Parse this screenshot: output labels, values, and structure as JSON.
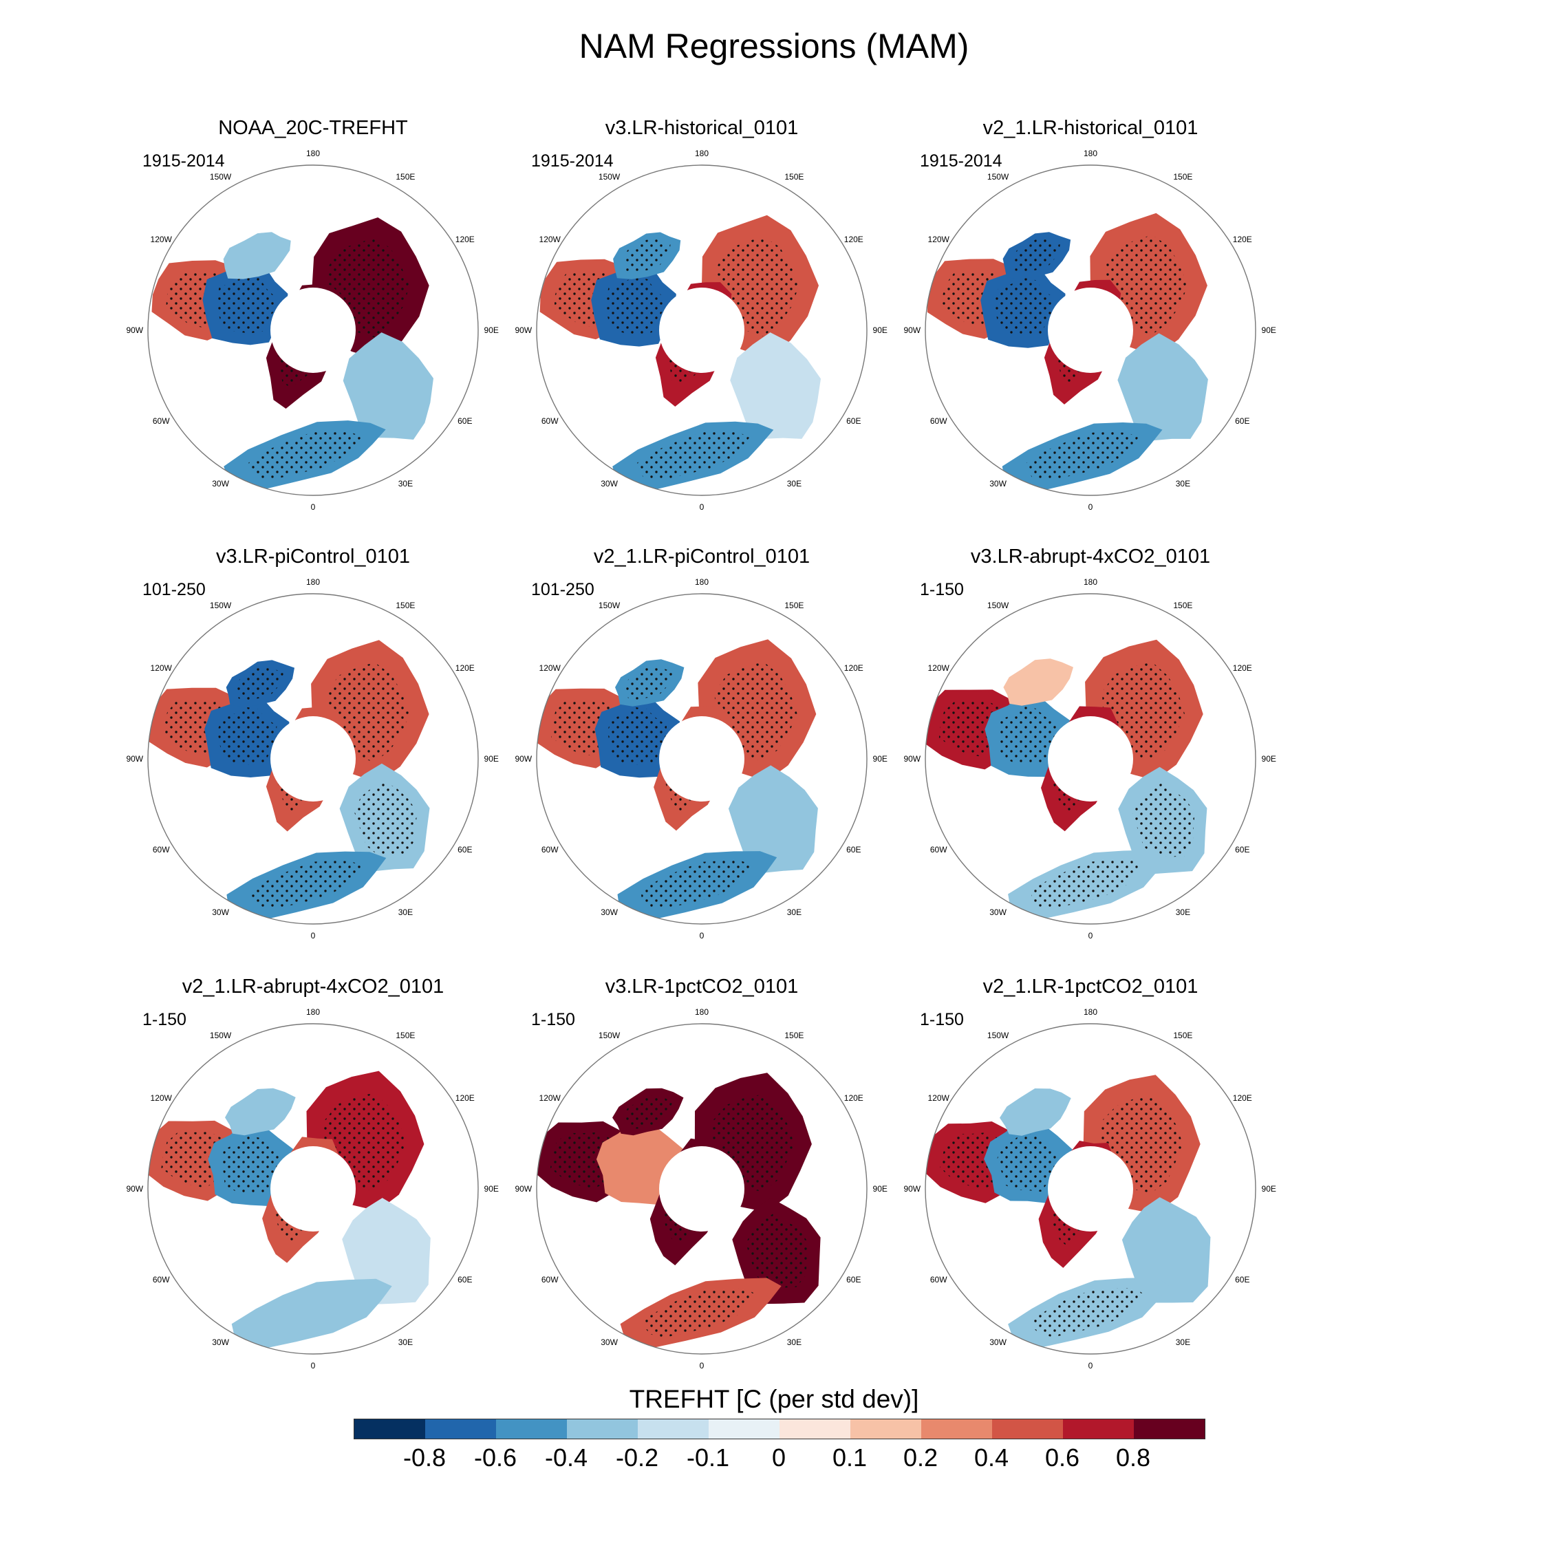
{
  "title": "NAM Regressions (MAM)",
  "lon_labels": [
    "180",
    "150E",
    "120E",
    "90E",
    "60E",
    "30E",
    "0",
    "30W",
    "60W",
    "90W",
    "120W",
    "150W"
  ],
  "panels": [
    {
      "title": "NOAA_20C-TREFHT",
      "period": "1915-2014",
      "europe": 0.95,
      "siberia": 0.9,
      "canada": -0.8,
      "na_west": 0.5,
      "atlantic": -0.45,
      "mideast": -0.35,
      "alaska": -0.3
    },
    {
      "title": "v3.LR-historical_0101",
      "period": "1915-2014",
      "europe": 0.6,
      "siberia": 0.5,
      "canada": -0.7,
      "na_west": 0.5,
      "atlantic": -0.5,
      "mideast": -0.2,
      "alaska": -0.6
    },
    {
      "title": "v2_1.LR-historical_0101",
      "period": "1915-2014",
      "europe": 0.65,
      "siberia": 0.55,
      "canada": -0.75,
      "na_west": 0.55,
      "atlantic": -0.6,
      "mideast": -0.3,
      "alaska": -0.8
    },
    {
      "title": "v3.LR-piControl_0101",
      "period": "101-250",
      "europe": 0.5,
      "siberia": 0.45,
      "canada": -0.75,
      "na_west": 0.45,
      "atlantic": -0.5,
      "mideast": -0.4,
      "alaska": -0.8
    },
    {
      "title": "v2_1.LR-piControl_0101",
      "period": "101-250",
      "europe": 0.55,
      "siberia": 0.5,
      "canada": -0.7,
      "na_west": 0.5,
      "atlantic": -0.55,
      "mideast": -0.3,
      "alaska": -0.6
    },
    {
      "title": "v3.LR-abrupt-4xCO2_0101",
      "period": "1-150",
      "europe": 0.75,
      "siberia": 0.5,
      "canada": -0.45,
      "na_west": 0.7,
      "atlantic": -0.4,
      "mideast": -0.4,
      "alaska": 0.1
    },
    {
      "title": "v2_1.LR-abrupt-4xCO2_0101",
      "period": "1-150",
      "europe": 0.45,
      "siberia": 0.6,
      "canada": -0.45,
      "na_west": 0.4,
      "atlantic": -0.3,
      "mideast": -0.15,
      "alaska": -0.3
    },
    {
      "title": "v3.LR-1pctCO2_0101",
      "period": "1-150",
      "europe": 0.95,
      "siberia": 0.9,
      "canada": 0.35,
      "na_west": 0.9,
      "atlantic": 0.45,
      "mideast": 0.9,
      "alaska": 0.9
    },
    {
      "title": "v2_1.LR-1pctCO2_0101",
      "period": "1-150",
      "europe": 0.6,
      "siberia": 0.55,
      "canada": -0.45,
      "na_west": 0.6,
      "atlantic": -0.4,
      "mideast": -0.25,
      "alaska": -0.35
    }
  ],
  "colorbar": {
    "title": "TREFHT [C (per std dev)]",
    "colors": [
      "#053061",
      "#2166ac",
      "#4393c3",
      "#92c5de",
      "#c7e0ee",
      "#e8f1f6",
      "#fbe6dc",
      "#f7c2a7",
      "#e8896d",
      "#d25546",
      "#b2182b",
      "#67001f"
    ],
    "labels": [
      "-0.8",
      "-0.6",
      "-0.4",
      "-0.2",
      "-0.1",
      "0",
      "0.1",
      "0.2",
      "0.4",
      "0.6",
      "0.8"
    ],
    "levels": [
      -0.8,
      -0.6,
      -0.4,
      -0.2,
      -0.1,
      0,
      0.1,
      0.2,
      0.4,
      0.6,
      0.8
    ]
  }
}
